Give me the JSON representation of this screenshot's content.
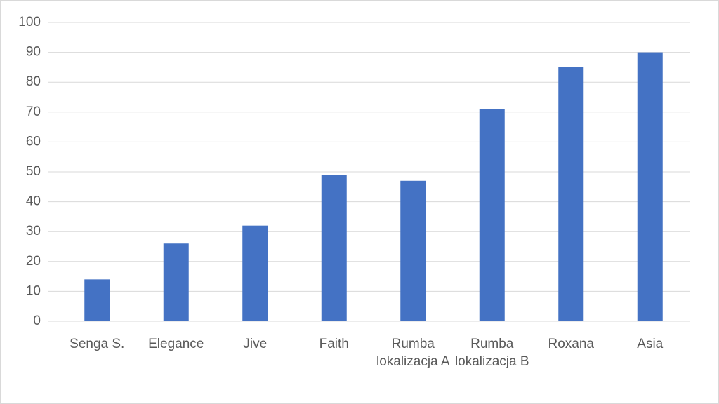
{
  "chart_data": {
    "type": "bar",
    "categories": [
      "Senga S.",
      "Elegance",
      "Jive",
      "Faith",
      "Rumba lokalizacja A",
      "Rumba lokalizacja B",
      "Roxana",
      "Asia"
    ],
    "values": [
      14,
      26,
      32,
      49,
      47,
      71,
      85,
      90
    ],
    "color": "#4472c4",
    "ylim": [
      0,
      100
    ],
    "yticks": [
      0,
      10,
      20,
      30,
      40,
      50,
      60,
      70,
      80,
      90,
      100
    ],
    "grid": true
  }
}
